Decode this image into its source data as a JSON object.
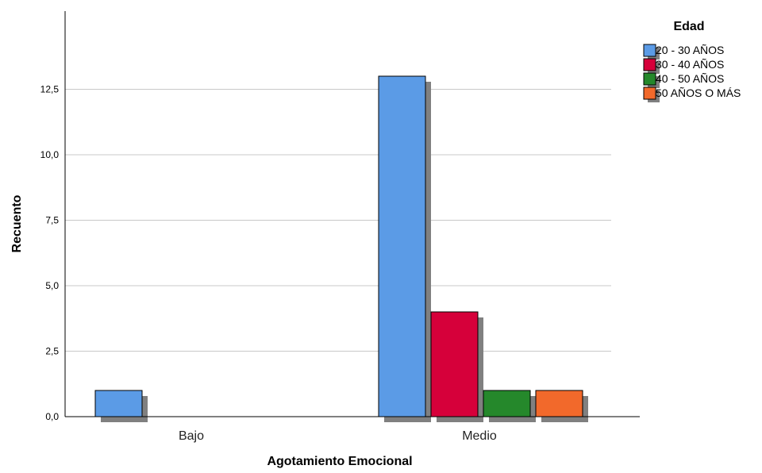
{
  "chart_data": {
    "type": "bar",
    "xlabel": "Agotamiento Emocional",
    "ylabel": "Recuento",
    "categories": [
      "Bajo",
      "Medio"
    ],
    "series": [
      {
        "name": "20 - 30 AÑOS",
        "color": "#5b9be6",
        "values": [
          1,
          13
        ]
      },
      {
        "name": "30 - 40 AÑOS",
        "color": "#d6003a",
        "values": [
          0,
          4
        ]
      },
      {
        "name": "40 - 50 AÑOS",
        "color": "#25882b",
        "values": [
          0,
          1
        ]
      },
      {
        "name": "50 AÑOS O MÁS",
        "color": "#f2692b",
        "values": [
          0,
          1
        ]
      }
    ],
    "ylim": [
      0,
      15
    ],
    "yticks": [
      "0,0",
      "2,5",
      "5,0",
      "7,5",
      "10,0",
      "12,5"
    ],
    "ytick_values": [
      0,
      2.5,
      5,
      7.5,
      10,
      12.5
    ],
    "grid": true,
    "legend": {
      "title": "Edad",
      "position": "top-right"
    }
  }
}
